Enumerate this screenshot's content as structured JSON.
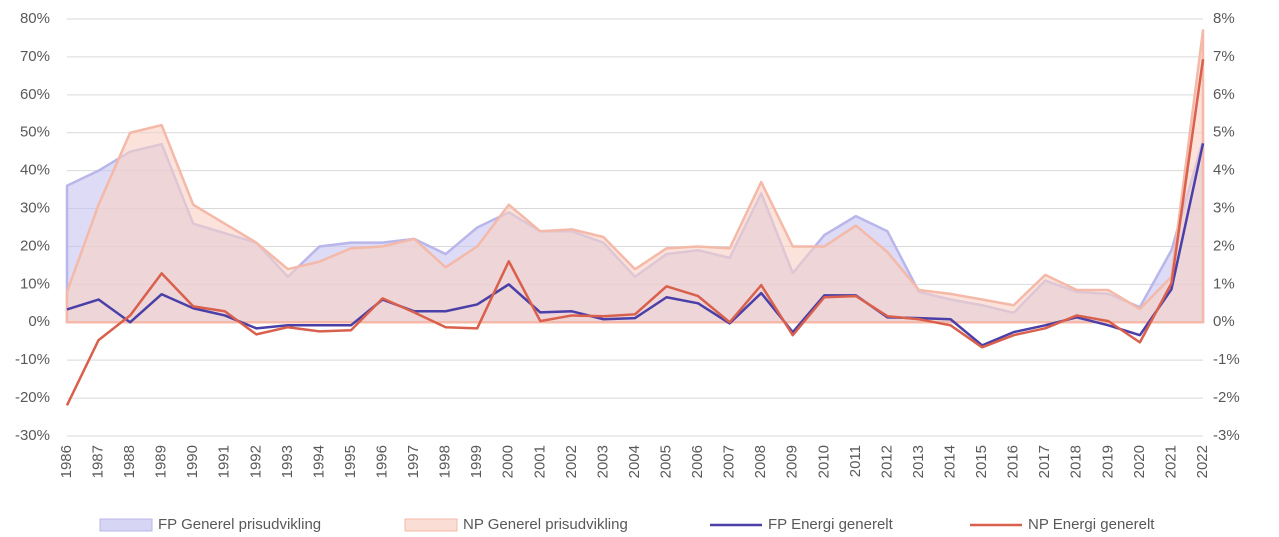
{
  "chart_data": {
    "type": "line",
    "categories": [
      "1986",
      "1987",
      "1988",
      "1989",
      "1990",
      "1991",
      "1992",
      "1993",
      "1994",
      "1995",
      "1996",
      "1997",
      "1998",
      "1999",
      "2000",
      "2001",
      "2002",
      "2003",
      "2004",
      "2005",
      "2006",
      "2007",
      "2008",
      "2009",
      "2010",
      "2011",
      "2012",
      "2013",
      "2014",
      "2015",
      "2016",
      "2017",
      "2018",
      "2019",
      "2020",
      "2021",
      "2022"
    ],
    "ylim": [
      -30,
      80
    ],
    "yticks": [
      {
        "value": -30,
        "label": "-30%"
      },
      {
        "value": -20,
        "label": "-20%"
      },
      {
        "value": -10,
        "label": "-10%"
      },
      {
        "value": 0,
        "label": "0%"
      },
      {
        "value": 10,
        "label": "10%"
      },
      {
        "value": 20,
        "label": "20%"
      },
      {
        "value": 30,
        "label": "30%"
      },
      {
        "value": 40,
        "label": "40%"
      },
      {
        "value": 50,
        "label": "50%"
      },
      {
        "value": 60,
        "label": "60%"
      },
      {
        "value": 70,
        "label": "70%"
      },
      {
        "value": 80,
        "label": "80%"
      }
    ],
    "y2lim": [
      -3,
      8
    ],
    "y2ticks": [
      {
        "value": -3,
        "label": "-3%"
      },
      {
        "value": -2,
        "label": "-2%"
      },
      {
        "value": -1,
        "label": "-1%"
      },
      {
        "value": 0,
        "label": "0%"
      },
      {
        "value": 1,
        "label": "1%"
      },
      {
        "value": 2,
        "label": "2%"
      },
      {
        "value": 3,
        "label": "3%"
      },
      {
        "value": 4,
        "label": "4%"
      },
      {
        "value": 5,
        "label": "5%"
      },
      {
        "value": 6,
        "label": "6%"
      },
      {
        "value": 7,
        "label": "7%"
      },
      {
        "value": 8,
        "label": "8%"
      }
    ],
    "grid": true,
    "legend": "bottom",
    "series": [
      {
        "name": "FP Generel prisudvikling",
        "style": "area",
        "axis": "y2",
        "color": "#c6c3f0",
        "edge": "#b9b6ea",
        "values": [
          3.6,
          4.0,
          4.5,
          4.7,
          2.6,
          2.35,
          2.1,
          1.2,
          2.0,
          2.1,
          2.1,
          2.2,
          1.8,
          2.5,
          2.9,
          2.4,
          2.4,
          2.1,
          1.2,
          1.8,
          1.9,
          1.7,
          3.4,
          1.3,
          2.3,
          2.8,
          2.4,
          0.8,
          0.6,
          0.45,
          0.25,
          1.1,
          0.8,
          0.75,
          0.4,
          1.9,
          4.8
        ]
      },
      {
        "name": "NP Generel prisudvikling",
        "style": "area",
        "axis": "y2",
        "color": "#f8d0c4",
        "edge": "#f4b9a8",
        "values": [
          0.8,
          3.1,
          5.0,
          5.2,
          3.1,
          2.6,
          2.1,
          1.4,
          1.6,
          1.95,
          2.0,
          2.2,
          1.45,
          2.0,
          3.1,
          2.4,
          2.45,
          2.25,
          1.4,
          1.95,
          2.0,
          1.95,
          3.7,
          2.0,
          2.0,
          2.55,
          1.85,
          0.85,
          0.75,
          0.6,
          0.45,
          1.25,
          0.85,
          0.85,
          0.35,
          1.2,
          7.7
        ]
      },
      {
        "name": "FP Energi generelt",
        "style": "line",
        "color": "#4b3fa8",
        "values": [
          3.4,
          6,
          0,
          7.4,
          3.7,
          1.8,
          -1.6,
          -0.8,
          -0.8,
          -0.8,
          6,
          2.9,
          2.9,
          4.7,
          10,
          2.6,
          2.9,
          0.8,
          1.1,
          6.6,
          5,
          -0.3,
          7.7,
          -2.6,
          7.1,
          7.1,
          1.3,
          1.1,
          0.8,
          -6.1,
          -2.6,
          -0.8,
          1.3,
          -0.8,
          -3.4,
          8.7,
          47.2
        ]
      },
      {
        "name": "NP Energi generelt",
        "style": "line",
        "color": "#d9604c",
        "values": [
          -21.9,
          -4.7,
          1.8,
          12.9,
          4.2,
          2.9,
          -3.2,
          -1.3,
          -2.4,
          -2.1,
          6.3,
          2.6,
          -1.3,
          -1.6,
          16.1,
          0.3,
          1.8,
          1.6,
          2.1,
          9.5,
          6.9,
          0,
          9.8,
          -3.4,
          6.6,
          6.9,
          1.6,
          0.8,
          -0.8,
          -6.6,
          -3.4,
          -1.6,
          1.8,
          0.3,
          -5.3,
          10.3,
          69.4
        ]
      }
    ]
  }
}
